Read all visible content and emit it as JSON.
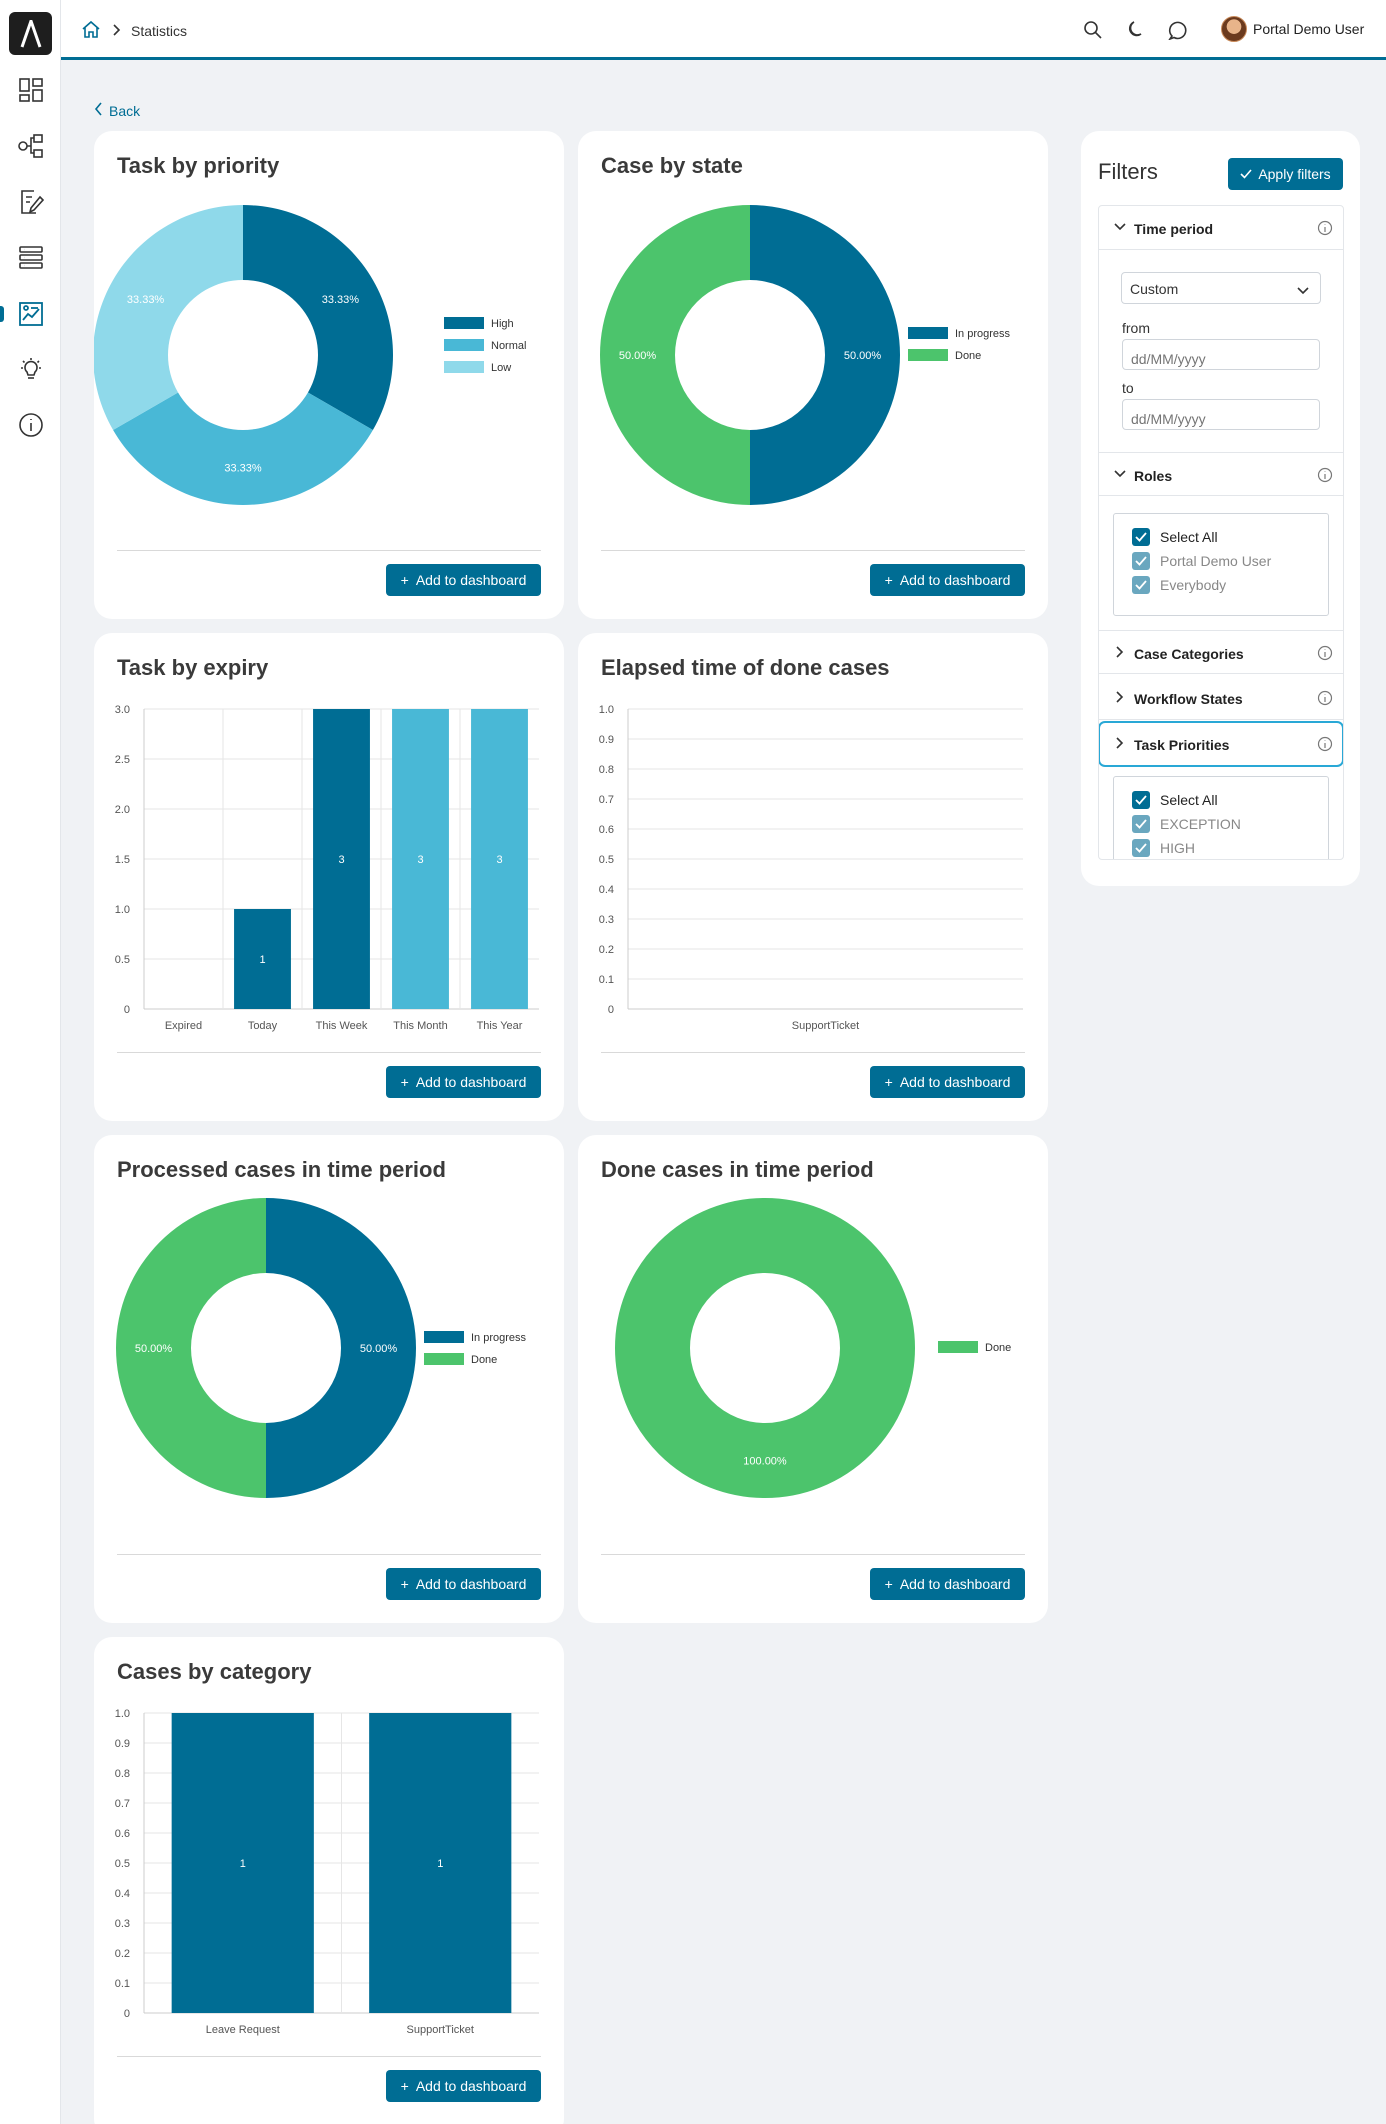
{
  "breadcrumb": {
    "current": "Statistics"
  },
  "user": {
    "name": "Portal Demo User"
  },
  "back_label": "Back",
  "colors": {
    "primary": "#006d94",
    "light_blue": "#49b8d6",
    "pale_blue": "#8fd9ea",
    "green": "#4cc46c"
  },
  "sidebar": {
    "items": [
      "dashboard-icon",
      "process-icon",
      "tasks-icon",
      "cases-icon",
      "statistics-icon",
      "ideas-icon",
      "info-icon"
    ]
  },
  "add_label": "Add to dashboard",
  "cards": {
    "task_priority": {
      "title": "Task by priority"
    },
    "case_state": {
      "title": "Case by state"
    },
    "task_expiry": {
      "title": "Task by expiry"
    },
    "elapsed": {
      "title": "Elapsed time of done cases"
    },
    "processed": {
      "title": "Processed cases in time period"
    },
    "done_cases": {
      "title": "Done cases in time period"
    },
    "category": {
      "title": "Cases by category"
    }
  },
  "chart_data": [
    {
      "type": "pie",
      "categories": [
        "High",
        "Normal",
        "Low"
      ],
      "values": [
        33.33,
        33.33,
        33.33
      ],
      "labels": [
        "33.33%",
        "33.33%",
        "33.33%"
      ],
      "colors": [
        "#006d94",
        "#49b8d6",
        "#8fd9ea"
      ],
      "legend": "right"
    },
    {
      "type": "pie",
      "categories": [
        "In progress",
        "Done"
      ],
      "values": [
        50.0,
        50.0
      ],
      "labels": [
        "50.00%",
        "50.00%"
      ],
      "colors": [
        "#006d94",
        "#4cc46c"
      ],
      "legend": "right"
    },
    {
      "type": "bar",
      "categories": [
        "Expired",
        "Today",
        "This Week",
        "This Month",
        "This Year"
      ],
      "values": [
        0,
        1,
        3,
        3,
        3
      ],
      "bar_labels": [
        "",
        "1",
        "3",
        "3",
        "3"
      ],
      "colors": [
        "#006d94",
        "#006d94",
        "#006d94",
        "#49b8d6",
        "#49b8d6"
      ],
      "yticks": [
        "0",
        "0.5",
        "1.0",
        "1.5",
        "2.0",
        "2.5",
        "3.0"
      ],
      "ylim": [
        0,
        3
      ],
      "grid": true
    },
    {
      "type": "bar",
      "categories": [
        "SupportTicket"
      ],
      "values": [
        0
      ],
      "yticks": [
        "0",
        "0.1",
        "0.2",
        "0.3",
        "0.4",
        "0.5",
        "0.6",
        "0.7",
        "0.8",
        "0.9",
        "1.0"
      ],
      "ylim": [
        0,
        1
      ],
      "grid": true
    },
    {
      "type": "pie",
      "categories": [
        "In progress",
        "Done"
      ],
      "values": [
        50.0,
        50.0
      ],
      "labels": [
        "50.00%",
        "50.00%"
      ],
      "colors": [
        "#006d94",
        "#4cc46c"
      ],
      "legend": "right"
    },
    {
      "type": "pie",
      "categories": [
        "Done"
      ],
      "values": [
        100.0
      ],
      "labels": [
        "100.00%"
      ],
      "colors": [
        "#4cc46c"
      ],
      "legend": "right"
    },
    {
      "type": "bar",
      "categories": [
        "Leave Request",
        "SupportTicket"
      ],
      "values": [
        1,
        1
      ],
      "bar_labels": [
        "1",
        "1"
      ],
      "colors": [
        "#006d94",
        "#006d94"
      ],
      "yticks": [
        "0",
        "0.1",
        "0.2",
        "0.3",
        "0.4",
        "0.5",
        "0.6",
        "0.7",
        "0.8",
        "0.9",
        "1.0"
      ],
      "ylim": [
        0,
        1
      ],
      "grid": true
    }
  ],
  "filters": {
    "title": "Filters",
    "apply_label": "Apply filters",
    "time_period": {
      "label": "Time period",
      "select_value": "Custom",
      "from_label": "from",
      "from_placeholder": "dd/MM/yyyy",
      "to_label": "to",
      "to_placeholder": "dd/MM/yyyy"
    },
    "roles": {
      "label": "Roles",
      "items": [
        "Select All",
        "Portal Demo User",
        "Everybody"
      ]
    },
    "case_categories": {
      "label": "Case Categories"
    },
    "workflow_states": {
      "label": "Workflow States"
    },
    "task_priorities": {
      "label": "Task Priorities",
      "items": [
        "Select All",
        "EXCEPTION",
        "HIGH"
      ]
    }
  }
}
